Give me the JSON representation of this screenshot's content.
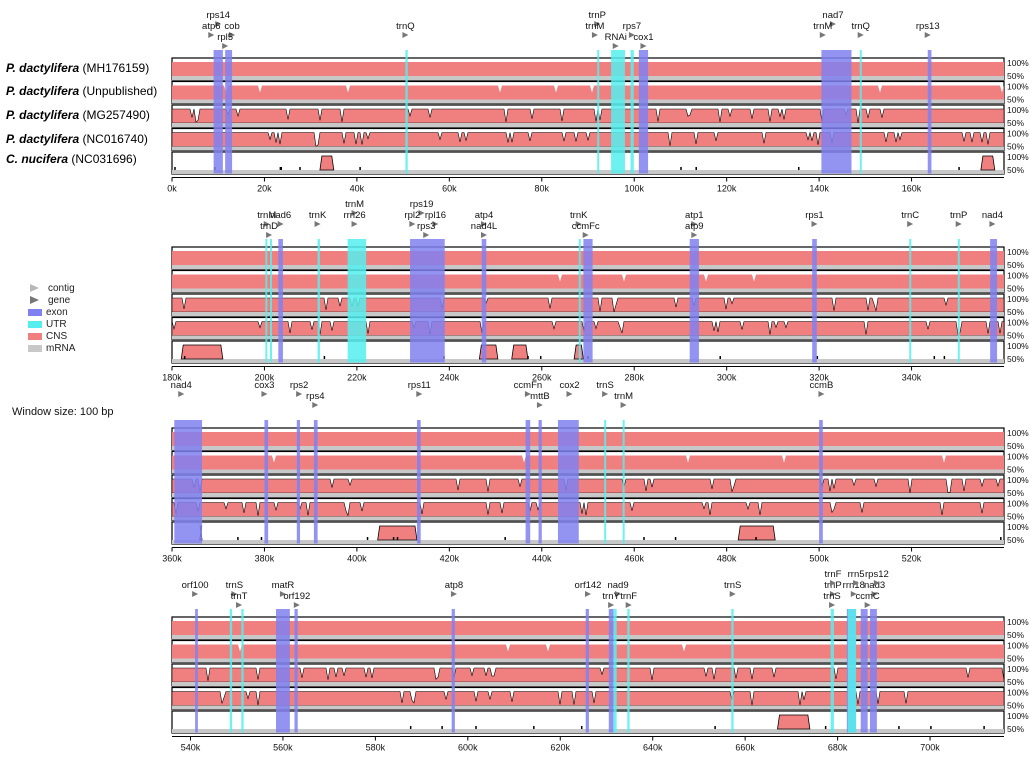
{
  "figure": {
    "window_size_label": "Window size: 100 bp",
    "sequences": [
      {
        "name": "P. dactylifera",
        "accession": "(MH176159)"
      },
      {
        "name": "P. dactylifera",
        "accession": "(Unpublished)"
      },
      {
        "name": "P. dactylifera",
        "accession": "(MG257490)"
      },
      {
        "name": "P. dactylifera",
        "accession": "(NC016740)"
      },
      {
        "name": "C. nucifera",
        "accession": "(NC031696)"
      }
    ],
    "legend": [
      {
        "label": "contig",
        "color": "#b8b8b8",
        "kind": "arrow"
      },
      {
        "label": "gene",
        "color": "#777777",
        "kind": "arrow"
      },
      {
        "label": "exon",
        "color": "#8080f0",
        "kind": "box"
      },
      {
        "label": "UTR",
        "color": "#55eeee",
        "kind": "box"
      },
      {
        "label": "CNS",
        "color": "#f08080",
        "kind": "box"
      },
      {
        "label": "mRNA",
        "color": "#c8c8c8",
        "kind": "box"
      }
    ],
    "colors": {
      "exon": "#8080f0",
      "utr": "#55eeee",
      "cns": "#f08080",
      "mrna": "#c8c8c8",
      "gene": "#777777"
    },
    "percent_labels": [
      "100%",
      "50%"
    ],
    "panels": [
      {
        "start": 0,
        "end": 180000,
        "ticks": [
          "0k",
          "20k",
          "40k",
          "60k",
          "80k",
          "100k",
          "120k",
          "140k",
          "160k"
        ],
        "tick_values": [
          0,
          20000,
          40000,
          60000,
          80000,
          100000,
          120000,
          140000,
          160000
        ],
        "exons": [
          [
            9000,
            11000
          ],
          [
            11500,
            13000
          ],
          [
            101000,
            103000
          ],
          [
            140500,
            147000
          ],
          [
            163500,
            164300
          ]
        ],
        "utrs": [
          [
            50500,
            51000
          ],
          [
            95000,
            98000
          ],
          [
            99200,
            99900
          ],
          [
            148800,
            149200
          ],
          [
            92000,
            92400
          ]
        ],
        "genes": [
          {
            "label": "rps14",
            "pos": 10000,
            "row": 0
          },
          {
            "label": "atp6",
            "pos": 8500,
            "row": 1
          },
          {
            "label": "cob",
            "pos": 13000,
            "row": 1
          },
          {
            "label": "rpl5",
            "pos": 11500,
            "row": 2
          },
          {
            "label": "trnQ",
            "pos": 50500,
            "row": 1
          },
          {
            "label": "trnP",
            "pos": 92000,
            "row": 0
          },
          {
            "label": "trnM",
            "pos": 91500,
            "row": 1
          },
          {
            "label": "rps7",
            "pos": 99500,
            "row": 1
          },
          {
            "label": "RNAi",
            "pos": 96000,
            "row": 2
          },
          {
            "label": "cox1",
            "pos": 102000,
            "row": 2
          },
          {
            "label": "nad7",
            "pos": 143000,
            "row": 0
          },
          {
            "label": "trnM",
            "pos": 140800,
            "row": 1
          },
          {
            "label": "trnQ",
            "pos": 149000,
            "row": 1
          },
          {
            "label": "rps13",
            "pos": 163500,
            "row": 1
          }
        ],
        "cnuc_blocks": [
          [
            32000,
            35000
          ],
          [
            175000,
            178000
          ]
        ],
        "scaffold_label": "rpl5",
        "scaffold_pos": 73500
      },
      {
        "start": 180000,
        "end": 360000,
        "ticks": [
          "180k",
          "200k",
          "220k",
          "240k",
          "260k",
          "280k",
          "300k",
          "320k",
          "340k"
        ],
        "tick_values": [
          180000,
          200000,
          220000,
          240000,
          260000,
          280000,
          300000,
          320000,
          340000
        ],
        "exons": [
          [
            203000,
            204000
          ],
          [
            231500,
            239000
          ],
          [
            247000,
            248000
          ],
          [
            269000,
            271000
          ],
          [
            292000,
            294000
          ],
          [
            318500,
            319500
          ],
          [
            357000,
            358500
          ]
        ],
        "utrs": [
          [
            200200,
            200600
          ],
          [
            201200,
            201600
          ],
          [
            211500,
            212000
          ],
          [
            218000,
            222000
          ],
          [
            268000,
            268400
          ],
          [
            339500,
            339900
          ],
          [
            350000,
            350400
          ]
        ],
        "genes": [
          {
            "label": "trnM",
            "pos": 219500,
            "row": 0
          },
          {
            "label": "rps19",
            "pos": 234000,
            "row": 0
          },
          {
            "label": "trnM",
            "pos": 200500,
            "row": 1
          },
          {
            "label": "nad6",
            "pos": 203500,
            "row": 1
          },
          {
            "label": "trnK",
            "pos": 211500,
            "row": 1
          },
          {
            "label": "rrn26",
            "pos": 219500,
            "row": 1
          },
          {
            "label": "rpl2",
            "pos": 232000,
            "row": 1
          },
          {
            "label": "rpl16",
            "pos": 237000,
            "row": 1
          },
          {
            "label": "atp4",
            "pos": 247500,
            "row": 1
          },
          {
            "label": "trnK",
            "pos": 268000,
            "row": 1
          },
          {
            "label": "atp1",
            "pos": 293000,
            "row": 1
          },
          {
            "label": "rps1",
            "pos": 319000,
            "row": 1
          },
          {
            "label": "trnC",
            "pos": 339700,
            "row": 1
          },
          {
            "label": "trnP",
            "pos": 350200,
            "row": 1
          },
          {
            "label": "nad4",
            "pos": 357500,
            "row": 1
          },
          {
            "label": "trnD",
            "pos": 201000,
            "row": 2
          },
          {
            "label": "rps3",
            "pos": 235000,
            "row": 2
          },
          {
            "label": "nad4L",
            "pos": 247500,
            "row": 2
          },
          {
            "label": "ccmFc",
            "pos": 269500,
            "row": 2
          },
          {
            "label": "atp9",
            "pos": 293000,
            "row": 2
          }
        ],
        "cnuc_blocks": [
          [
            182000,
            191000
          ],
          [
            246500,
            250500
          ],
          [
            253500,
            257000
          ],
          [
            267000,
            269000
          ]
        ]
      },
      {
        "start": 360000,
        "end": 540000,
        "ticks": [
          "360k",
          "380k",
          "400k",
          "420k",
          "440k",
          "460k",
          "480k",
          "500k",
          "520k"
        ],
        "tick_values": [
          360000,
          380000,
          400000,
          420000,
          440000,
          460000,
          480000,
          500000,
          520000
        ],
        "exons": [
          [
            360500,
            366500
          ],
          [
            380000,
            380800
          ],
          [
            387000,
            387700
          ],
          [
            390700,
            391500
          ],
          [
            413000,
            413800
          ],
          [
            436500,
            437500
          ],
          [
            439300,
            440000
          ],
          [
            443500,
            448000
          ],
          [
            500000,
            500800
          ]
        ],
        "utrs": [
          [
            453500,
            453900
          ],
          [
            457500,
            457900
          ]
        ],
        "genes": [
          {
            "label": "nad4",
            "pos": 362000,
            "row": 0
          },
          {
            "label": "cox3",
            "pos": 380000,
            "row": 0
          },
          {
            "label": "rps2",
            "pos": 387500,
            "row": 0
          },
          {
            "label": "rps11",
            "pos": 413500,
            "row": 0
          },
          {
            "label": "ccmFn",
            "pos": 437000,
            "row": 0
          },
          {
            "label": "cox2",
            "pos": 446000,
            "row": 0
          },
          {
            "label": "trnS",
            "pos": 453700,
            "row": 0
          },
          {
            "label": "ccmB",
            "pos": 500500,
            "row": 0
          },
          {
            "label": "rps4",
            "pos": 391000,
            "row": 1
          },
          {
            "label": "mttB",
            "pos": 439600,
            "row": 1
          },
          {
            "label": "trnM",
            "pos": 457700,
            "row": 1
          }
        ],
        "cnuc_blocks": [
          [
            366000,
            366500
          ],
          [
            404500,
            413000
          ],
          [
            482500,
            490500
          ]
        ]
      },
      {
        "start": 536000,
        "end": 716000,
        "ticks": [
          "540k",
          "560k",
          "580k",
          "600k",
          "620k",
          "640k",
          "660k",
          "680k",
          "700k"
        ],
        "tick_values": [
          540000,
          560000,
          580000,
          600000,
          620000,
          640000,
          660000,
          680000,
          700000
        ],
        "exons": [
          [
            541000,
            541600
          ],
          [
            558500,
            561500
          ],
          [
            562500,
            563200
          ],
          [
            596500,
            597200
          ],
          [
            625500,
            626200
          ],
          [
            630500,
            631500
          ],
          [
            682000,
            684000
          ],
          [
            685000,
            686500
          ],
          [
            687000,
            688500
          ]
        ],
        "utrs": [
          [
            548500,
            549000
          ],
          [
            551000,
            551500
          ],
          [
            631500,
            632200
          ],
          [
            634500,
            635000
          ],
          [
            657000,
            657500
          ],
          [
            678500,
            679200
          ],
          [
            682200,
            684000
          ]
        ],
        "genes": [
          {
            "label": "orf100",
            "pos": 541000,
            "row": 1
          },
          {
            "label": "trnS",
            "pos": 549500,
            "row": 1
          },
          {
            "label": "matR",
            "pos": 560000,
            "row": 1
          },
          {
            "label": "atp8",
            "pos": 597000,
            "row": 1
          },
          {
            "label": "orf142",
            "pos": 626000,
            "row": 1
          },
          {
            "label": "nad9",
            "pos": 632500,
            "row": 1
          },
          {
            "label": "trnS",
            "pos": 657300,
            "row": 1
          },
          {
            "label": "trnP",
            "pos": 679000,
            "row": 1
          },
          {
            "label": "rrn18",
            "pos": 683500,
            "row": 1
          },
          {
            "label": "nad3",
            "pos": 688000,
            "row": 1
          },
          {
            "label": "trnF",
            "pos": 679000,
            "row": 0
          },
          {
            "label": "rrn5",
            "pos": 684000,
            "row": 0
          },
          {
            "label": "rps12",
            "pos": 688500,
            "row": 0
          },
          {
            "label": "trnT",
            "pos": 550500,
            "row": 2
          },
          {
            "label": "orf192",
            "pos": 563000,
            "row": 2
          },
          {
            "label": "trnY",
            "pos": 631000,
            "row": 2
          },
          {
            "label": "trnF",
            "pos": 634800,
            "row": 2
          },
          {
            "label": "trnS",
            "pos": 678800,
            "row": 2
          },
          {
            "label": "ccmC",
            "pos": 686500,
            "row": 2
          }
        ],
        "cnuc_blocks": [
          [
            667000,
            674000
          ]
        ]
      }
    ]
  }
}
